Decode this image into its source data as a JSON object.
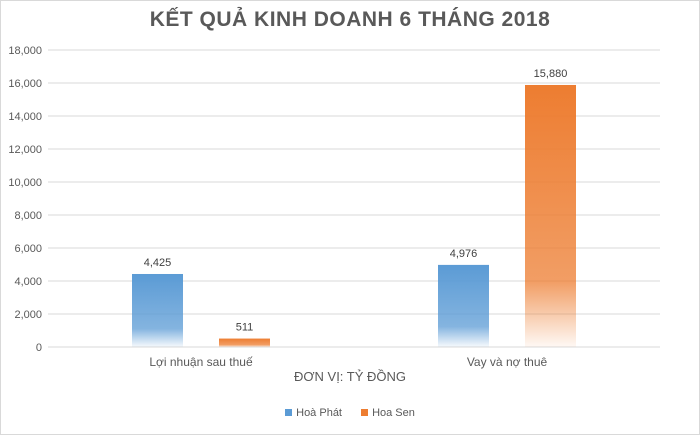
{
  "chart_data": {
    "type": "bar",
    "title": "KẾT QUẢ KINH DOANH 6 THÁNG 2018",
    "xlabel": "ĐƠN VỊ: TỶ ĐỒNG",
    "ylabel": "",
    "categories": [
      "Lợi nhuận sau thuế",
      "Vay và nợ thuê"
    ],
    "series": [
      {
        "name": "Hoà Phát",
        "values": [
          4425,
          4976
        ],
        "color": "#5b9bd5",
        "labels": [
          "4,425",
          "4,976"
        ]
      },
      {
        "name": "Hoa Sen",
        "values": [
          511,
          15880
        ],
        "color": "#ed7d31",
        "labels": [
          "511",
          "15,880"
        ]
      }
    ],
    "ylim": [
      0,
      18000
    ],
    "yticks": [
      "0",
      "2,000",
      "4,000",
      "6,000",
      "8,000",
      "10,000",
      "12,000",
      "14,000",
      "16,000",
      "18,000"
    ],
    "grid": true,
    "legend_position": "bottom"
  }
}
